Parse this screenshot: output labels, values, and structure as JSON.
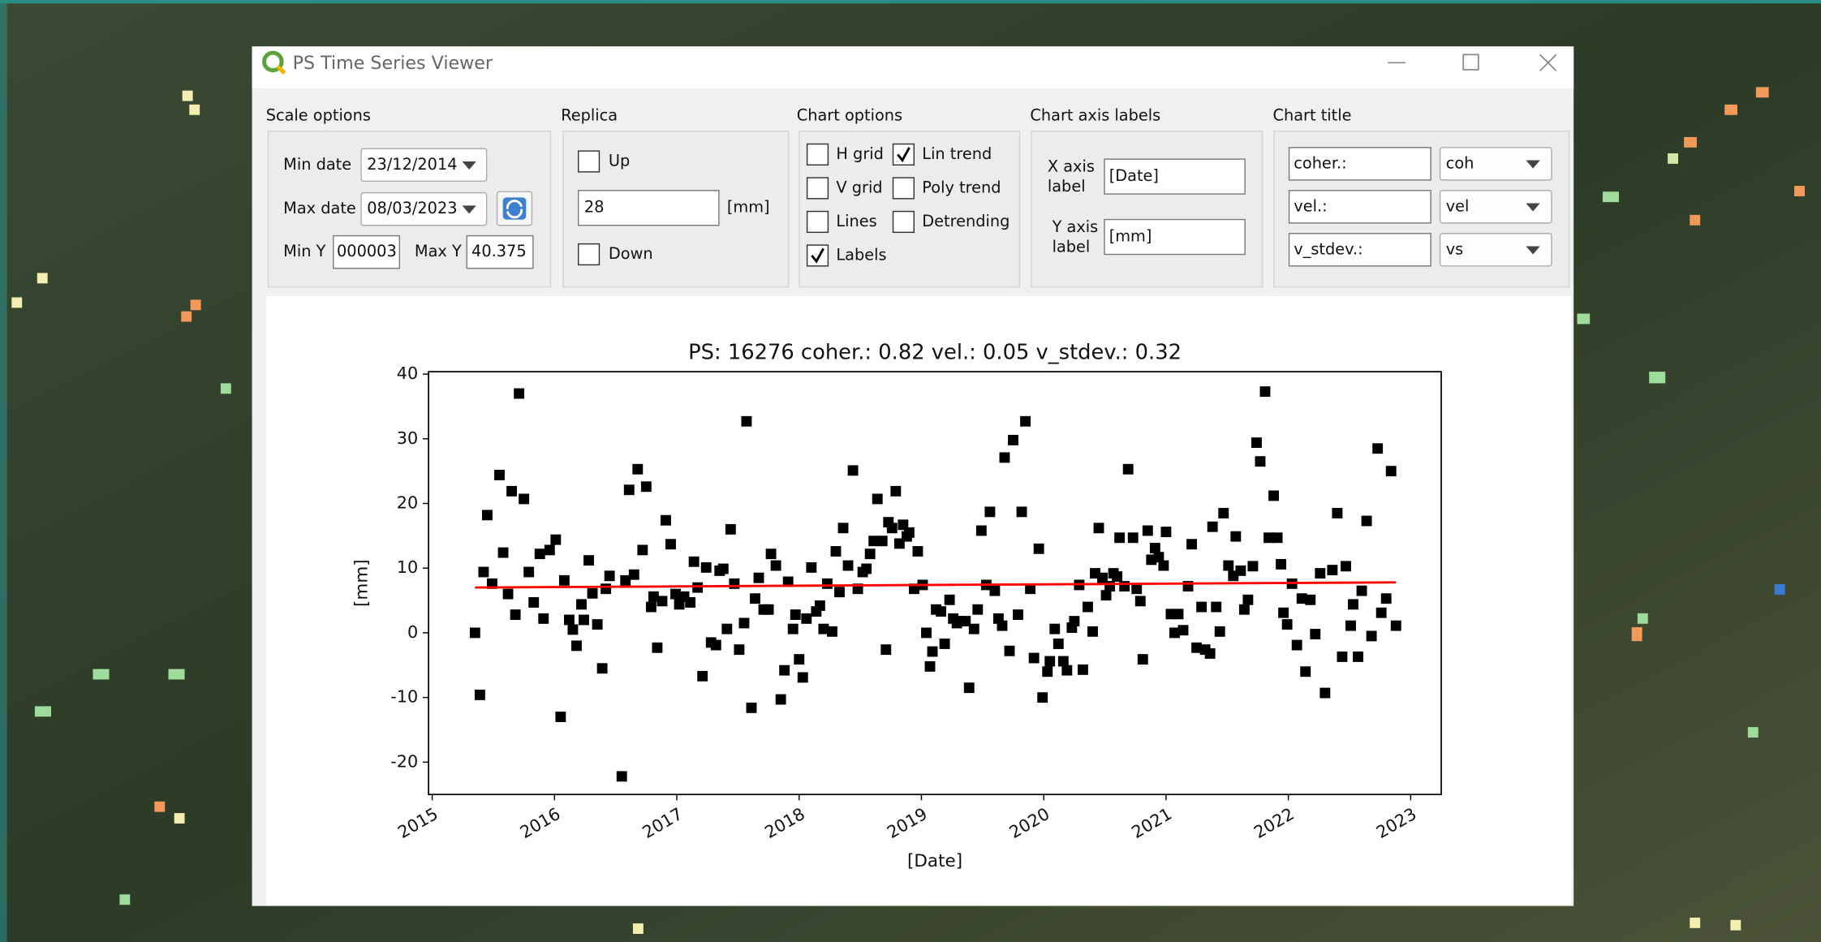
{
  "window": {
    "title": "PS Time Series Viewer"
  },
  "scale_options": {
    "title": "Scale options",
    "min_date_label": "Min date",
    "min_date": "23/12/2014",
    "max_date_label": "Max date",
    "max_date": "08/03/2023",
    "min_y_label": "Min Y",
    "min_y": "000003",
    "max_y_label": "Max Y",
    "max_y": "40.375"
  },
  "replica": {
    "title": "Replica",
    "up": "Up",
    "value": "28",
    "unit": "[mm]",
    "down": "Down"
  },
  "chart_options": {
    "title": "Chart options",
    "items": [
      {
        "label": "H grid",
        "checked": false
      },
      {
        "label": "Lin trend",
        "checked": true
      },
      {
        "label": "V grid",
        "checked": false
      },
      {
        "label": "Poly trend",
        "checked": false
      },
      {
        "label": "Lines",
        "checked": false
      },
      {
        "label": "Detrending",
        "checked": false
      },
      {
        "label": "Labels",
        "checked": true
      }
    ]
  },
  "chart_axis_labels": {
    "title": "Chart axis labels",
    "x_caption": [
      "X axis",
      "label"
    ],
    "x_value": "[Date]",
    "y_caption": [
      "Y axis",
      "label"
    ],
    "y_value": "[mm]"
  },
  "chart_title": {
    "title": "Chart title",
    "rows": [
      {
        "text": "coher.:",
        "choice": "coh"
      },
      {
        "text": "vel.:",
        "choice": "vel"
      },
      {
        "text": "v_stdev.:",
        "choice": "vs"
      }
    ]
  },
  "chart_data": {
    "type": "scatter",
    "title": "PS: 16276 coher.: 0.82 vel.: 0.05 v_stdev.: 0.32",
    "x_label": "[Date]",
    "y_label": "[mm]",
    "xlim": [
      2014.97,
      2023.25
    ],
    "ylim": [
      -25,
      40.375
    ],
    "xticks": [
      2015,
      2016,
      2017,
      2018,
      2019,
      2020,
      2021,
      2022,
      2023
    ],
    "yticks": [
      -20,
      -10,
      0,
      10,
      20,
      30,
      40
    ],
    "grid": false,
    "color": "#000000",
    "x": [
      2015.35,
      2015.39,
      2015.42,
      2015.45,
      2015.49,
      2015.55,
      2015.58,
      2015.62,
      2015.65,
      2015.68,
      2015.71,
      2015.75,
      2015.79,
      2015.83,
      2015.88,
      2015.91,
      2015.96,
      2016.01,
      2016.05,
      2016.08,
      2016.12,
      2016.15,
      2016.18,
      2016.22,
      2016.24,
      2016.28,
      2016.31,
      2016.35,
      2016.39,
      2016.42,
      2016.45,
      2016.55,
      2016.58,
      2016.61,
      2016.65,
      2016.68,
      2016.72,
      2016.75,
      2016.79,
      2016.81,
      2016.84,
      2016.88,
      2016.91,
      2016.95,
      2016.99,
      2017.02,
      2017.06,
      2017.11,
      2017.14,
      2017.17,
      2017.21,
      2017.24,
      2017.28,
      2017.32,
      2017.35,
      2017.38,
      2017.41,
      2017.44,
      2017.47,
      2017.51,
      2017.55,
      2017.57,
      2017.61,
      2017.64,
      2017.67,
      2017.71,
      2017.75,
      2017.77,
      2017.81,
      2017.85,
      2017.88,
      2017.91,
      2017.95,
      2017.97,
      2018.0,
      2018.03,
      2018.06,
      2018.1,
      2018.14,
      2018.17,
      2018.2,
      2018.23,
      2018.27,
      2018.3,
      2018.33,
      2018.36,
      2018.4,
      2018.44,
      2018.48,
      2018.52,
      2018.55,
      2018.58,
      2018.61,
      2018.64,
      2018.68,
      2018.71,
      2018.73,
      2018.76,
      2018.79,
      2018.82,
      2018.85,
      2018.88,
      2018.9,
      2018.94,
      2018.97,
      2019.01,
      2019.04,
      2019.07,
      2019.09,
      2019.12,
      2019.16,
      2019.19,
      2019.23,
      2019.26,
      2019.29,
      2019.32,
      2019.36,
      2019.39,
      2019.43,
      2019.46,
      2019.49,
      2019.53,
      2019.56,
      2019.6,
      2019.63,
      2019.66,
      2019.68,
      2019.72,
      2019.75,
      2019.79,
      2019.82,
      2019.85,
      2019.89,
      2019.92,
      2019.96,
      2019.99,
      2020.03,
      2020.05,
      2020.09,
      2020.12,
      2020.16,
      2020.19,
      2020.23,
      2020.25,
      2020.29,
      2020.32,
      2020.36,
      2020.4,
      2020.42,
      2020.45,
      2020.48,
      2020.51,
      2020.54,
      2020.57,
      2020.6,
      2020.62,
      2020.66,
      2020.69,
      2020.73,
      2020.76,
      2020.79,
      2020.81,
      2020.85,
      2020.88,
      2020.91,
      2020.94,
      2020.98,
      2021.0,
      2021.04,
      2021.07,
      2021.1,
      2021.14,
      2021.18,
      2021.21,
      2021.25,
      2021.29,
      2021.32,
      2021.36,
      2021.38,
      2021.41,
      2021.44,
      2021.47,
      2021.51,
      2021.55,
      2021.57,
      2021.61,
      2021.64,
      2021.67,
      2021.71,
      2021.74,
      2021.77,
      2021.81,
      2021.84,
      2021.88,
      2021.91,
      2021.94,
      2021.96,
      2021.99,
      2022.03,
      2022.07,
      2022.11,
      2022.14,
      2022.18,
      2022.22,
      2022.26,
      2022.3,
      2022.36,
      2022.4,
      2022.44,
      2022.47,
      2022.51,
      2022.53,
      2022.57,
      2022.6,
      2022.64,
      2022.68,
      2022.73,
      2022.76,
      2022.8,
      2022.84,
      2022.88
    ],
    "values": [
      0,
      -9.6,
      9.4,
      18.2,
      7.6,
      24.4,
      12.4,
      6,
      21.9,
      2.8,
      37,
      20.7,
      9.4,
      4.7,
      12.2,
      2.2,
      12.8,
      14.4,
      -13,
      8.1,
      2,
      0.5,
      -2,
      4.4,
      2,
      11.2,
      6.1,
      1.3,
      -5.5,
      6.8,
      8.8,
      -22.2,
      8.1,
      22.1,
      9,
      25.3,
      12.8,
      22.6,
      4,
      5.6,
      -2.3,
      4.9,
      17.4,
      13.7,
      6,
      4.4,
      5.6,
      4.7,
      11,
      7,
      -6.7,
      10.1,
      -1.5,
      -1.9,
      9.6,
      9.9,
      0.6,
      16,
      7.6,
      -2.6,
      1.5,
      32.7,
      -11.6,
      5.3,
      8.5,
      3.6,
      3.6,
      12.2,
      10.4,
      -10.3,
      -5.8,
      7.9,
      0.6,
      2.8,
      -4.1,
      -6.9,
      2.2,
      10.1,
      3.3,
      4.2,
      0.6,
      7.6,
      0.2,
      12.6,
      6.3,
      16.2,
      10.4,
      25.1,
      6.8,
      9.4,
      9.9,
      12.2,
      14.2,
      20.7,
      14.2,
      -2.6,
      17.1,
      16.2,
      21.9,
      13.8,
      16.7,
      14.9,
      15.5,
      6.8,
      12.6,
      7.4,
      0,
      -5.2,
      -2.9,
      3.6,
      3.3,
      -1.7,
      5.1,
      2.2,
      1.5,
      1.8,
      1.8,
      -8.5,
      0.6,
      3.6,
      15.8,
      7.4,
      18.7,
      6.5,
      2.2,
      1.1,
      27.1,
      -2.8,
      29.8,
      2.8,
      18.7,
      32.7,
      6.8,
      -3.9,
      13,
      -10,
      -6,
      -4.4,
      0.6,
      -1.7,
      -4.4,
      -5.8,
      0.8,
      1.8,
      7.4,
      -5.7,
      4,
      0.2,
      9.2,
      16.2,
      8.5,
      5.8,
      7.2,
      9.2,
      8.7,
      14.7,
      7.2,
      25.3,
      14.7,
      6.8,
      4.9,
      -4.1,
      15.8,
      11.3,
      13.1,
      11.7,
      10.4,
      15.6,
      2.9,
      0,
      2.9,
      0.4,
      7.2,
      13.7,
      -2.3,
      4,
      -2.6,
      -3.2,
      16.4,
      4,
      0.2,
      18.5,
      10.4,
      8.8,
      14.9,
      9.6,
      3.6,
      5.1,
      10.3,
      29.4,
      26.5,
      37.3,
      14.7,
      21.2,
      14.7,
      10.6,
      3.1,
      1.3,
      7.6,
      -1.9,
      5.3,
      -6,
      5.1,
      -0.2,
      9.2,
      -9.3,
      9.7,
      18.5,
      -3.7,
      10.3,
      1.1,
      4.4,
      -3.7,
      6.5,
      17.3,
      -0.5,
      28.5,
      3.1,
      5.3,
      25,
      1.1
    ],
    "trend": {
      "color": "#ff0000",
      "x": [
        2015.35,
        2022.88
      ],
      "values": [
        7,
        7.8
      ]
    }
  }
}
